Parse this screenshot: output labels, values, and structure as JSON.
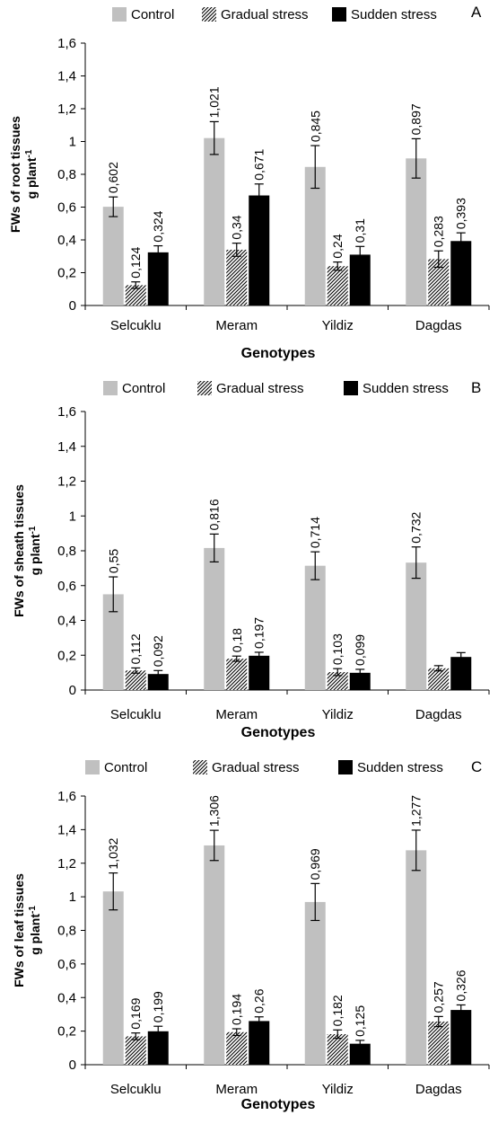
{
  "legend": {
    "control": "Control",
    "gradual": "Gradual stress",
    "sudden": "Sudden stress"
  },
  "colors": {
    "control": "#c0c0c0",
    "gradual_hatch": "#000000",
    "sudden": "#000000"
  },
  "chart_data": [
    {
      "panel": "A",
      "type": "bar",
      "categories": [
        "Selcuklu",
        "Meram",
        "Yildiz",
        "Dagdas"
      ],
      "series": [
        {
          "name": "Control",
          "values": [
            0.602,
            1.021,
            0.845,
            0.897
          ],
          "errors": [
            0.06,
            0.1,
            0.13,
            0.12
          ]
        },
        {
          "name": "Gradual stress",
          "values": [
            0.124,
            0.34,
            0.24,
            0.283
          ],
          "errors": [
            0.02,
            0.04,
            0.025,
            0.05
          ]
        },
        {
          "name": "Sudden stress",
          "values": [
            0.324,
            0.671,
            0.31,
            0.393
          ],
          "errors": [
            0.04,
            0.07,
            0.05,
            0.05
          ]
        }
      ],
      "data_labels": [
        [
          "0,602",
          "0,124",
          "0,324"
        ],
        [
          "1,021",
          "0,34",
          "0,671"
        ],
        [
          "0,845",
          "0,24",
          "0,31"
        ],
        [
          "0,897",
          "0,283",
          "0,393"
        ]
      ],
      "xlabel": "Genotypes",
      "ylabel_line1": "FWs of root tissues",
      "ylabel_line2": "g plant",
      "ylabel_sup": "-1",
      "ylim": [
        0,
        1.6
      ],
      "yticks": [
        "0",
        "0,2",
        "0,4",
        "0,6",
        "0,8",
        "1",
        "1,2",
        "1,4",
        "1,6"
      ]
    },
    {
      "panel": "B",
      "type": "bar",
      "categories": [
        "Selcuklu",
        "Meram",
        "Yildiz",
        "Dagdas"
      ],
      "series": [
        {
          "name": "Control",
          "values": [
            0.55,
            0.816,
            0.714,
            0.732
          ],
          "errors": [
            0.1,
            0.08,
            0.08,
            0.09
          ]
        },
        {
          "name": "Gradual stress",
          "values": [
            0.112,
            0.18,
            0.103,
            0.125
          ],
          "errors": [
            0.015,
            0.015,
            0.02,
            0.015
          ]
        },
        {
          "name": "Sudden stress",
          "values": [
            0.092,
            0.197,
            0.099,
            0.19
          ],
          "errors": [
            0.02,
            0.02,
            0.02,
            0.025
          ]
        }
      ],
      "data_labels": [
        [
          "0,55",
          "0,112",
          "0,092"
        ],
        [
          "0,816",
          "0,18",
          "0,197"
        ],
        [
          "0,714",
          "0,103",
          "0,099"
        ],
        [
          "0,732",
          "",
          ""
        ]
      ],
      "xlabel": "Genotypes",
      "ylabel_line1": "FWs of sheath tissues",
      "ylabel_line2": "g plant",
      "ylabel_sup": "-1",
      "ylim": [
        0,
        1.6
      ],
      "yticks": [
        "0",
        "0,2",
        "0,4",
        "0,6",
        "0,8",
        "1",
        "1,2",
        "1,4",
        "1,6"
      ]
    },
    {
      "panel": "C",
      "type": "bar",
      "categories": [
        "Selcuklu",
        "Meram",
        "Yildiz",
        "Dagdas"
      ],
      "series": [
        {
          "name": "Control",
          "values": [
            1.032,
            1.306,
            0.969,
            1.277
          ],
          "errors": [
            0.11,
            0.09,
            0.11,
            0.12
          ]
        },
        {
          "name": "Gradual stress",
          "values": [
            0.169,
            0.194,
            0.182,
            0.257
          ],
          "errors": [
            0.02,
            0.02,
            0.025,
            0.03
          ]
        },
        {
          "name": "Sudden stress",
          "values": [
            0.199,
            0.26,
            0.125,
            0.326
          ],
          "errors": [
            0.03,
            0.025,
            0.02,
            0.03
          ]
        }
      ],
      "data_labels": [
        [
          "1,032",
          "0,169",
          "0,199"
        ],
        [
          "1,306",
          "0,194",
          "0,26"
        ],
        [
          "0,969",
          "0,182",
          "0,125"
        ],
        [
          "1,277",
          "0,257",
          "0,326"
        ]
      ],
      "xlabel": "Genotypes",
      "ylabel_line1": "FWs of leaf tissues",
      "ylabel_line2": "g plant",
      "ylabel_sup": "-1",
      "ylim": [
        0,
        1.6
      ],
      "yticks": [
        "0",
        "0,2",
        "0,4",
        "0,6",
        "0,8",
        "1",
        "1,2",
        "1,4",
        "1,6"
      ]
    }
  ]
}
